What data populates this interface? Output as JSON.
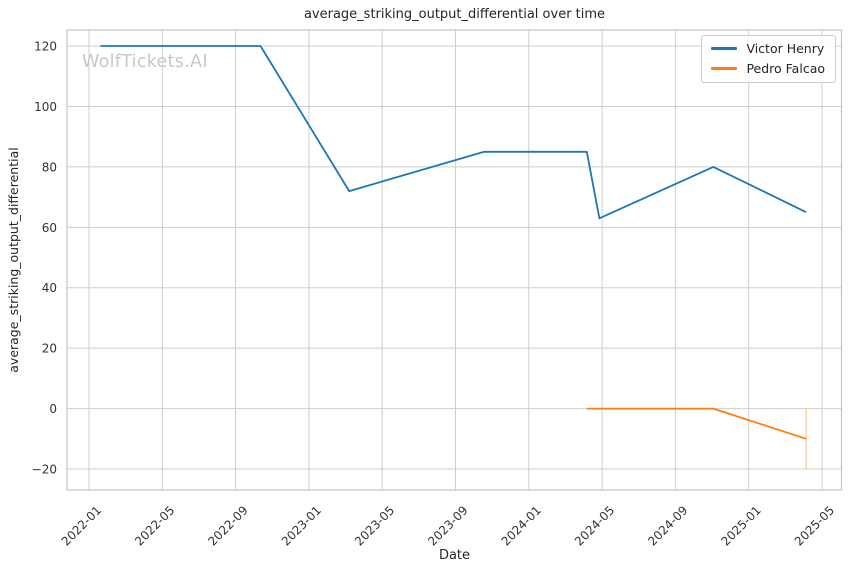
{
  "colors": {
    "background": "#ffffff",
    "grid": "#cfcfcf",
    "spine": "#c3c3c3",
    "text": "#262626",
    "tick_text": "#333333",
    "watermark": "#c8c8c8",
    "series_blue": "#1f77b4",
    "series_orange": "#ff7f0e"
  },
  "chart_data": {
    "type": "line",
    "title": "average_striking_output_differential over time",
    "xlabel": "Date",
    "ylabel": "average_striking_output_differential",
    "watermark": "WolfTickets.AI",
    "grid": true,
    "legend_position": "upper right",
    "x_ticks": [
      "2022-01",
      "2022-05",
      "2022-09",
      "2023-01",
      "2023-05",
      "2023-09",
      "2024-01",
      "2024-05",
      "2024-09",
      "2025-01",
      "2025-05"
    ],
    "y_ticks": [
      120,
      100,
      80,
      60,
      40,
      20,
      0,
      -20
    ],
    "xlim": [
      "2021-11-25",
      "2025-06-02"
    ],
    "ylim": [
      -27,
      125
    ],
    "series": [
      {
        "name": "Victor Henry",
        "color": "#1f77b4",
        "points": [
          {
            "date": "2022-01-20",
            "value": 120
          },
          {
            "date": "2022-10-12",
            "value": 120
          },
          {
            "date": "2023-03-07",
            "value": 72
          },
          {
            "date": "2023-10-18",
            "value": 85
          },
          {
            "date": "2024-04-06",
            "value": 85
          },
          {
            "date": "2024-04-27",
            "value": 63
          },
          {
            "date": "2024-11-03",
            "value": 80
          },
          {
            "date": "2025-04-05",
            "value": 65
          }
        ]
      },
      {
        "name": "Pedro Falcao",
        "color": "#ff7f0e",
        "points": [
          {
            "date": "2024-04-06",
            "value": 0
          },
          {
            "date": "2024-11-03",
            "value": 0
          },
          {
            "date": "2025-04-05",
            "value": -10
          }
        ],
        "error_bar": {
          "date": "2025-04-05",
          "from": 0,
          "to": -20
        }
      }
    ]
  }
}
